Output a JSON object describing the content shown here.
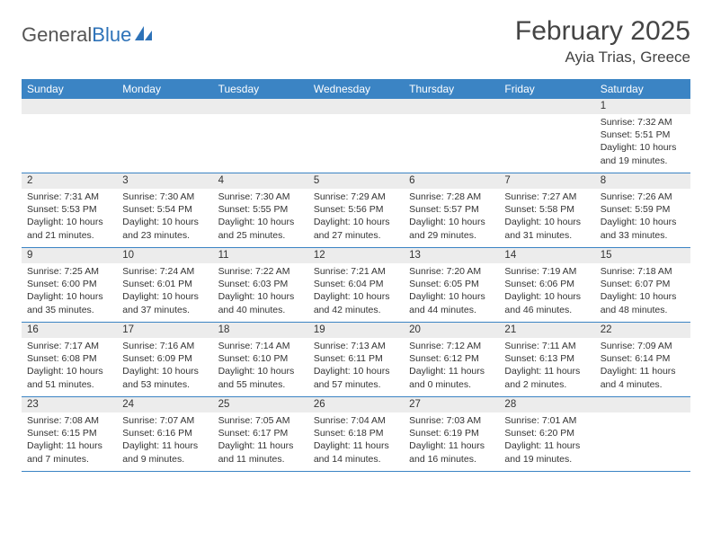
{
  "logo": {
    "text1": "General",
    "text2": "Blue"
  },
  "title": "February 2025",
  "location": "Ayia Trias, Greece",
  "day_names": [
    "Sunday",
    "Monday",
    "Tuesday",
    "Wednesday",
    "Thursday",
    "Friday",
    "Saturday"
  ],
  "colors": {
    "header_bg": "#3b84c4",
    "daynum_bg": "#ececec",
    "accent": "#2d72b8"
  },
  "weeks": [
    [
      {
        "n": "",
        "sr": "",
        "ss": "",
        "dl": ""
      },
      {
        "n": "",
        "sr": "",
        "ss": "",
        "dl": ""
      },
      {
        "n": "",
        "sr": "",
        "ss": "",
        "dl": ""
      },
      {
        "n": "",
        "sr": "",
        "ss": "",
        "dl": ""
      },
      {
        "n": "",
        "sr": "",
        "ss": "",
        "dl": ""
      },
      {
        "n": "",
        "sr": "",
        "ss": "",
        "dl": ""
      },
      {
        "n": "1",
        "sr": "Sunrise: 7:32 AM",
        "ss": "Sunset: 5:51 PM",
        "dl": "Daylight: 10 hours and 19 minutes."
      }
    ],
    [
      {
        "n": "2",
        "sr": "Sunrise: 7:31 AM",
        "ss": "Sunset: 5:53 PM",
        "dl": "Daylight: 10 hours and 21 minutes."
      },
      {
        "n": "3",
        "sr": "Sunrise: 7:30 AM",
        "ss": "Sunset: 5:54 PM",
        "dl": "Daylight: 10 hours and 23 minutes."
      },
      {
        "n": "4",
        "sr": "Sunrise: 7:30 AM",
        "ss": "Sunset: 5:55 PM",
        "dl": "Daylight: 10 hours and 25 minutes."
      },
      {
        "n": "5",
        "sr": "Sunrise: 7:29 AM",
        "ss": "Sunset: 5:56 PM",
        "dl": "Daylight: 10 hours and 27 minutes."
      },
      {
        "n": "6",
        "sr": "Sunrise: 7:28 AM",
        "ss": "Sunset: 5:57 PM",
        "dl": "Daylight: 10 hours and 29 minutes."
      },
      {
        "n": "7",
        "sr": "Sunrise: 7:27 AM",
        "ss": "Sunset: 5:58 PM",
        "dl": "Daylight: 10 hours and 31 minutes."
      },
      {
        "n": "8",
        "sr": "Sunrise: 7:26 AM",
        "ss": "Sunset: 5:59 PM",
        "dl": "Daylight: 10 hours and 33 minutes."
      }
    ],
    [
      {
        "n": "9",
        "sr": "Sunrise: 7:25 AM",
        "ss": "Sunset: 6:00 PM",
        "dl": "Daylight: 10 hours and 35 minutes."
      },
      {
        "n": "10",
        "sr": "Sunrise: 7:24 AM",
        "ss": "Sunset: 6:01 PM",
        "dl": "Daylight: 10 hours and 37 minutes."
      },
      {
        "n": "11",
        "sr": "Sunrise: 7:22 AM",
        "ss": "Sunset: 6:03 PM",
        "dl": "Daylight: 10 hours and 40 minutes."
      },
      {
        "n": "12",
        "sr": "Sunrise: 7:21 AM",
        "ss": "Sunset: 6:04 PM",
        "dl": "Daylight: 10 hours and 42 minutes."
      },
      {
        "n": "13",
        "sr": "Sunrise: 7:20 AM",
        "ss": "Sunset: 6:05 PM",
        "dl": "Daylight: 10 hours and 44 minutes."
      },
      {
        "n": "14",
        "sr": "Sunrise: 7:19 AM",
        "ss": "Sunset: 6:06 PM",
        "dl": "Daylight: 10 hours and 46 minutes."
      },
      {
        "n": "15",
        "sr": "Sunrise: 7:18 AM",
        "ss": "Sunset: 6:07 PM",
        "dl": "Daylight: 10 hours and 48 minutes."
      }
    ],
    [
      {
        "n": "16",
        "sr": "Sunrise: 7:17 AM",
        "ss": "Sunset: 6:08 PM",
        "dl": "Daylight: 10 hours and 51 minutes."
      },
      {
        "n": "17",
        "sr": "Sunrise: 7:16 AM",
        "ss": "Sunset: 6:09 PM",
        "dl": "Daylight: 10 hours and 53 minutes."
      },
      {
        "n": "18",
        "sr": "Sunrise: 7:14 AM",
        "ss": "Sunset: 6:10 PM",
        "dl": "Daylight: 10 hours and 55 minutes."
      },
      {
        "n": "19",
        "sr": "Sunrise: 7:13 AM",
        "ss": "Sunset: 6:11 PM",
        "dl": "Daylight: 10 hours and 57 minutes."
      },
      {
        "n": "20",
        "sr": "Sunrise: 7:12 AM",
        "ss": "Sunset: 6:12 PM",
        "dl": "Daylight: 11 hours and 0 minutes."
      },
      {
        "n": "21",
        "sr": "Sunrise: 7:11 AM",
        "ss": "Sunset: 6:13 PM",
        "dl": "Daylight: 11 hours and 2 minutes."
      },
      {
        "n": "22",
        "sr": "Sunrise: 7:09 AM",
        "ss": "Sunset: 6:14 PM",
        "dl": "Daylight: 11 hours and 4 minutes."
      }
    ],
    [
      {
        "n": "23",
        "sr": "Sunrise: 7:08 AM",
        "ss": "Sunset: 6:15 PM",
        "dl": "Daylight: 11 hours and 7 minutes."
      },
      {
        "n": "24",
        "sr": "Sunrise: 7:07 AM",
        "ss": "Sunset: 6:16 PM",
        "dl": "Daylight: 11 hours and 9 minutes."
      },
      {
        "n": "25",
        "sr": "Sunrise: 7:05 AM",
        "ss": "Sunset: 6:17 PM",
        "dl": "Daylight: 11 hours and 11 minutes."
      },
      {
        "n": "26",
        "sr": "Sunrise: 7:04 AM",
        "ss": "Sunset: 6:18 PM",
        "dl": "Daylight: 11 hours and 14 minutes."
      },
      {
        "n": "27",
        "sr": "Sunrise: 7:03 AM",
        "ss": "Sunset: 6:19 PM",
        "dl": "Daylight: 11 hours and 16 minutes."
      },
      {
        "n": "28",
        "sr": "Sunrise: 7:01 AM",
        "ss": "Sunset: 6:20 PM",
        "dl": "Daylight: 11 hours and 19 minutes."
      },
      {
        "n": "",
        "sr": "",
        "ss": "",
        "dl": ""
      }
    ]
  ]
}
